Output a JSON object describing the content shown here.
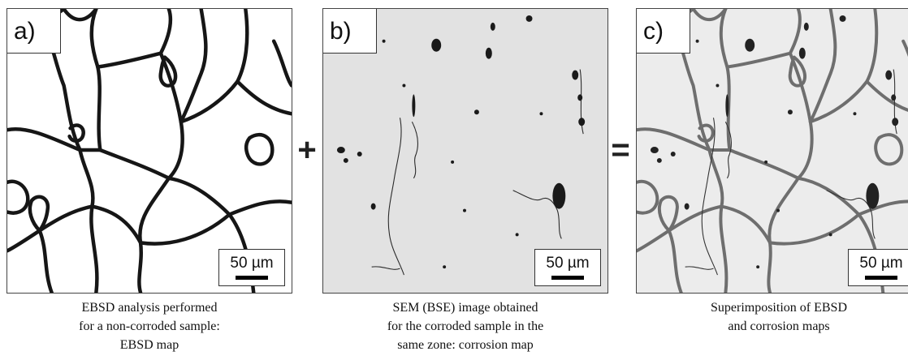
{
  "panels": [
    {
      "label": "a)",
      "scale_bar": "50 µm",
      "caption": [
        "EBSD analysis performed",
        "for a non-corroded sample:",
        "EBSD map"
      ]
    },
    {
      "label": "b)",
      "scale_bar": "50 µm",
      "caption": [
        "SEM (BSE) image obtained",
        "for the corroded sample in the",
        "same zone: corrosion map"
      ]
    },
    {
      "label": "c)",
      "scale_bar": "50 µm",
      "caption": [
        "Superimposition  of EBSD",
        "and corrosion maps"
      ]
    }
  ],
  "operators": {
    "plus": "+",
    "equals": "="
  },
  "colors": {
    "grain_boundary_dark": "#161616",
    "grain_boundary_faded": "#6e6e6e",
    "sem_background": "#e2e2e2",
    "pit_color": "#1a1a1a"
  }
}
